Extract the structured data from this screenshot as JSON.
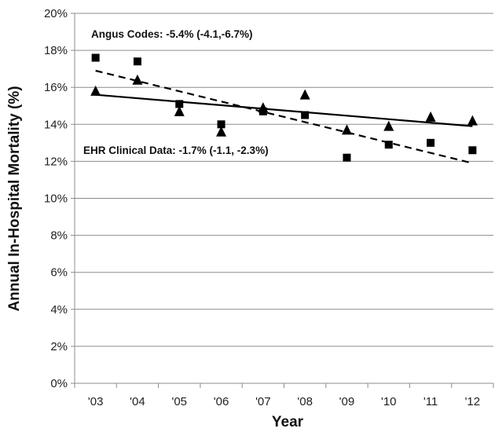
{
  "chart_data": {
    "type": "scatter",
    "xlabel": "Year",
    "ylabel": "Annual In-Hospital Mortality (%)",
    "categories": [
      "'03",
      "'04",
      "'05",
      "'06",
      "'07",
      "'08",
      "'09",
      "'10",
      "'11",
      "'12"
    ],
    "ylim": [
      0,
      20
    ],
    "yticks": [
      "0%",
      "2%",
      "4%",
      "6%",
      "8%",
      "10%",
      "12%",
      "14%",
      "16%",
      "18%",
      "20%"
    ],
    "grid": true,
    "series": [
      {
        "marker": "square",
        "values": [
          17.6,
          17.4,
          15.1,
          14.0,
          14.7,
          14.5,
          12.2,
          12.9,
          13.0,
          12.6
        ],
        "trendline": {
          "start": 16.9,
          "end": 11.9,
          "style": "dashed"
        }
      },
      {
        "marker": "triangle",
        "values": [
          15.8,
          16.4,
          14.7,
          13.6,
          14.9,
          15.6,
          13.7,
          13.9,
          14.4,
          14.2
        ],
        "trendline": {
          "start": 15.6,
          "end": 13.9,
          "style": "solid"
        }
      }
    ],
    "annotations": [
      "Angus Codes: -5.4% (-4.1,-6.7%)",
      "EHR Clinical Data: -1.7% (-1.1, -2.3%)"
    ]
  }
}
